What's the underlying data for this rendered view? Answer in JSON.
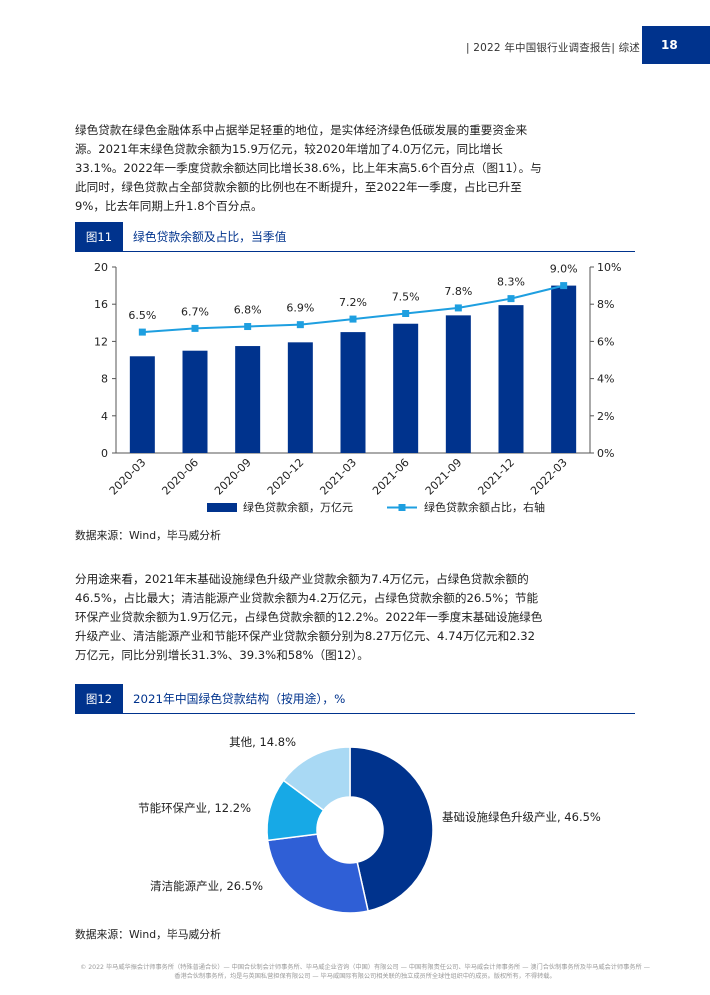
{
  "header": {
    "title": "| 2022 年中国银行业调查报告| 综述 |",
    "page_number": "18"
  },
  "paragraph1": "绿色贷款在绿色金融体系中占据举足轻重的地位，是实体经济绿色低碳发展的重要资金来源。2021年末绿色贷款余额为15.9万亿元，较2020年增加了4.0万亿元，同比增长33.1%。2022年一季度贷款余额达同比增长38.6%，比上年末高5.6个百分点（图11）。与此同时，绿色贷款占全部贷款余额的比例也在不断提升，至2022年一季度，占比已升至9%，比去年同期上升1.8个百分点。",
  "figure11": {
    "tag": "图11",
    "title": "绿色贷款余额及占比，当季值",
    "source": "数据来源：Wind，毕马威分析"
  },
  "paragraph2": "分用途来看，2021年末基础设施绿色升级产业贷款余额为7.4万亿元，占绿色贷款余额的46.5%，占比最大；清洁能源产业贷款余额为4.2万亿元，占绿色贷款余额的26.5%；节能环保产业贷款余额为1.9万亿元，占绿色贷款余额的12.2%。2022年一季度末基础设施绿色升级产业、清洁能源产业和节能环保产业贷款余额分别为8.27万亿元、4.74万亿元和2.32万亿元，同比分别增长31.3%、39.3%和58%（图12）。",
  "figure12": {
    "tag": "图12",
    "title": "2021年中国绿色贷款结构（按用途），%",
    "source": "数据来源：Wind，毕马威分析"
  },
  "footer": "© 2022 毕马威华振会计师事务所（特殊普通合伙）— 中国合伙制会计师事务所、毕马威企业咨询（中国）有限公司 — 中国有限责任公司、毕马威会计师事务所 — 澳门合伙制事务所及毕马威会计师事务所 — 香港合伙制事务所，均是与英国私营担保有限公司 — 毕马威国际有限公司相关联的独立成员所全球性组织中的成员。版权所有，不得转载。",
  "chart_data": [
    {
      "type": "bar+line",
      "categories": [
        "2020-03",
        "2020-06",
        "2020-09",
        "2020-12",
        "2021-03",
        "2021-06",
        "2021-09",
        "2021-12",
        "2022-03"
      ],
      "series": [
        {
          "name": "绿色贷款余额，万亿元",
          "type": "bar",
          "axis": "left",
          "color": "#00338d",
          "values": [
            10.4,
            11.0,
            11.5,
            11.9,
            13.0,
            13.9,
            14.8,
            15.9,
            18.0
          ]
        },
        {
          "name": "绿色贷款余额占比，右轴",
          "type": "line",
          "axis": "right",
          "color": "#1e9fe0",
          "values": [
            6.5,
            6.7,
            6.8,
            6.9,
            7.2,
            7.5,
            7.8,
            8.3,
            9.0
          ],
          "labels": [
            "6.5%",
            "6.7%",
            "6.8%",
            "6.9%",
            "7.2%",
            "7.5%",
            "7.8%",
            "8.3%",
            "9.0%"
          ]
        }
      ],
      "left_axis": {
        "min": 0,
        "max": 20,
        "ticks": [
          "0",
          "4",
          "8",
          "12",
          "16",
          "20"
        ]
      },
      "right_axis": {
        "min": 0,
        "max": 10,
        "ticks": [
          "0%",
          "2%",
          "4%",
          "6%",
          "8%",
          "10%"
        ]
      },
      "grid": false,
      "legend_position": "bottom"
    },
    {
      "type": "pie",
      "variant": "donut",
      "slices": [
        {
          "label": "基础设施绿色升级产业, 46.5%",
          "value": 46.5,
          "color": "#00338d"
        },
        {
          "label": "清洁能源产业, 26.5%",
          "value": 26.5,
          "color": "#2f5fd6"
        },
        {
          "label": "节能环保产业, 12.2%",
          "value": 12.2,
          "color": "#17a9e6"
        },
        {
          "label": "其他, 14.8%",
          "value": 14.8,
          "color": "#a9d9f4"
        }
      ]
    }
  ]
}
